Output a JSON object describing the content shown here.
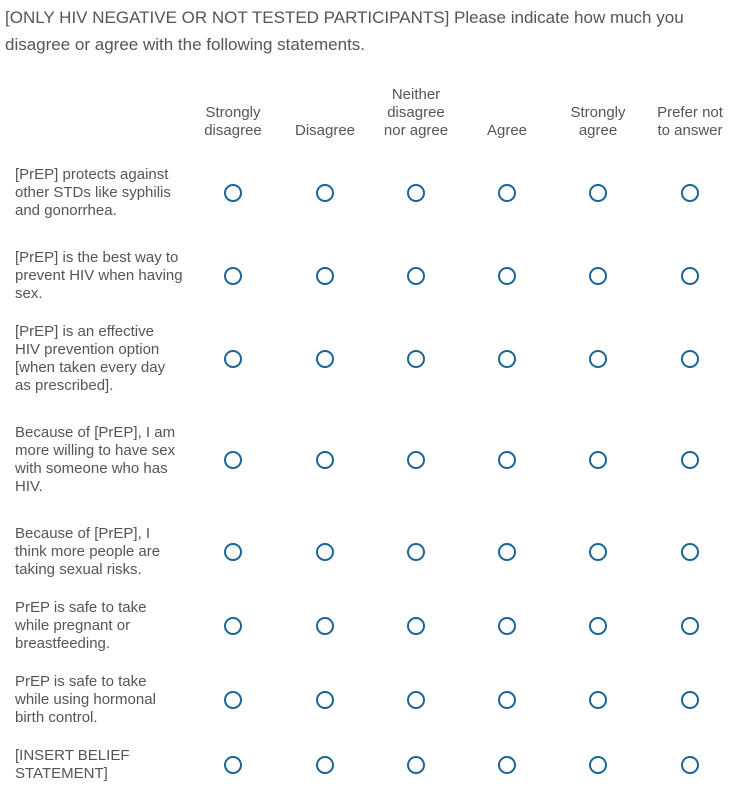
{
  "question": "[ONLY HIV NEGATIVE OR NOT TESTED PARTICIPANTS] Please indicate how much you disagree or agree with the following statements.",
  "columns": [
    "Strongly disagree",
    "Disagree",
    "Neither disagree nor agree",
    "Agree",
    "Strongly agree",
    "Prefer not to answer"
  ],
  "rows": [
    "[PrEP] protects against other STDs like syphilis and gonorrhea.",
    "[PrEP] is the best way to prevent HIV when having sex.",
    "[PrEP] is an effective HIV prevention option [when taken every day as prescribed].",
    "Because of [PrEP], I am more willing to have sex with someone who has HIV.",
    "Because of [PrEP], I think more people are taking sexual risks.",
    "PrEP is safe to take while pregnant or breastfeeding.",
    "PrEP is safe to take while using hormonal birth control.",
    "[INSERT BELIEF STATEMENT]"
  ]
}
